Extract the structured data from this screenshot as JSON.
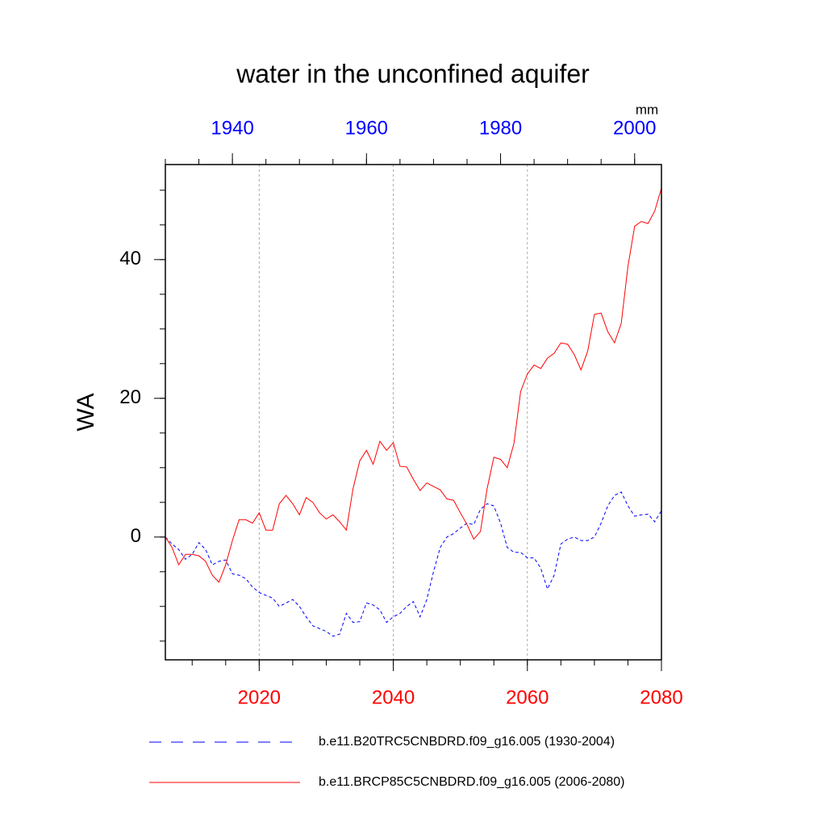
{
  "chart_data": {
    "type": "line",
    "title": "water in the unconfined aquifer",
    "y_label": "WA",
    "units": "mm",
    "xlim": [
      2006,
      2080
    ],
    "xticks": [
      2020,
      2040,
      2060,
      2080
    ],
    "xtick_color": "#ff0000",
    "x_minor_step": 5,
    "x2lim": [
      1930,
      2004
    ],
    "x2ticks": [
      1940,
      1960,
      1980,
      2000
    ],
    "x2tick_color": "#0000ff",
    "x2_minor_step": 5,
    "ylim": [
      -17.7,
      53.7
    ],
    "yticks": [
      0,
      20,
      40
    ],
    "y_minor_step": 5,
    "grid": true,
    "series": [
      {
        "name": "b.e11.B20TRC5CNBDRD.f09_g16.005 (1930-2004)",
        "color": "#0000ff",
        "dash": true,
        "axis": "x2",
        "x": [
          1930,
          1931,
          1932,
          1933,
          1934,
          1935,
          1936,
          1937,
          1938,
          1939,
          1940,
          1941,
          1942,
          1943,
          1944,
          1945,
          1946,
          1947,
          1948,
          1949,
          1950,
          1951,
          1952,
          1953,
          1954,
          1955,
          1956,
          1957,
          1958,
          1959,
          1960,
          1961,
          1962,
          1963,
          1964,
          1965,
          1966,
          1967,
          1968,
          1969,
          1970,
          1971,
          1972,
          1973,
          1974,
          1975,
          1976,
          1977,
          1978,
          1979,
          1980,
          1981,
          1982,
          1983,
          1984,
          1985,
          1986,
          1987,
          1988,
          1989,
          1990,
          1991,
          1992,
          1993,
          1994,
          1995,
          1996,
          1997,
          1998,
          1999,
          2000,
          2001,
          2002,
          2003,
          2004
        ],
        "values": [
          0,
          -1,
          -1.8,
          -3.2,
          -2.5,
          -0.8,
          -1.8,
          -4,
          -3.5,
          -3.3,
          -5.3,
          -5.5,
          -6,
          -7.2,
          -8,
          -8.4,
          -8.8,
          -10,
          -9.5,
          -9,
          -10,
          -11.5,
          -12.8,
          -13.2,
          -13.6,
          -14.3,
          -14,
          -11,
          -12.3,
          -12.2,
          -9.5,
          -9.8,
          -10.5,
          -12.3,
          -11.5,
          -11,
          -10,
          -9.3,
          -11.5,
          -9,
          -5,
          -1.5,
          0,
          0.5,
          1.3,
          2,
          1.8,
          4,
          4.8,
          4.5,
          2,
          -1.5,
          -2.2,
          -2.2,
          -3,
          -3,
          -4.5,
          -7.5,
          -5.5,
          -1,
          -0.3,
          0,
          -0.5,
          -0.5,
          0,
          2,
          4.5,
          6,
          6.5,
          4.5,
          3,
          3.2,
          3.3,
          2.2,
          3.8
        ]
      },
      {
        "name": "b.e11.BRCP85C5CNBDRD.f09_g16.005 (2006-2080)",
        "color": "#ff0000",
        "dash": false,
        "axis": "x",
        "x": [
          2006,
          2007,
          2008,
          2009,
          2010,
          2011,
          2012,
          2013,
          2014,
          2015,
          2016,
          2017,
          2018,
          2019,
          2020,
          2021,
          2022,
          2023,
          2024,
          2025,
          2026,
          2027,
          2028,
          2029,
          2030,
          2031,
          2032,
          2033,
          2034,
          2035,
          2036,
          2037,
          2038,
          2039,
          2040,
          2041,
          2042,
          2043,
          2044,
          2045,
          2046,
          2047,
          2048,
          2049,
          2050,
          2051,
          2052,
          2053,
          2054,
          2055,
          2056,
          2057,
          2058,
          2059,
          2060,
          2061,
          2062,
          2063,
          2064,
          2065,
          2066,
          2067,
          2068,
          2069,
          2070,
          2071,
          2072,
          2073,
          2074,
          2075,
          2076,
          2077,
          2078,
          2079,
          2080
        ],
        "values": [
          0,
          -1.5,
          -4,
          -2.5,
          -2.5,
          -2.7,
          -3.5,
          -5.5,
          -6.5,
          -4,
          -0.5,
          2.5,
          2.5,
          2,
          3.5,
          1,
          1,
          4.8,
          6,
          4.8,
          3.2,
          5.7,
          5,
          3.5,
          2.6,
          3.2,
          2.2,
          1,
          7,
          11,
          12.5,
          10.5,
          13.8,
          12.5,
          13.6,
          10.2,
          10.1,
          8.3,
          6.7,
          7.8,
          7.3,
          6.8,
          5.5,
          5.3,
          3.5,
          1.8,
          -0.3,
          0.8,
          7,
          11.5,
          11.2,
          10,
          13.5,
          21,
          23.5,
          24.8,
          24.3,
          25.8,
          26.5,
          28,
          27.8,
          26.3,
          24.1,
          26.8,
          32.1,
          32.3,
          29.6,
          28,
          30.8,
          39,
          44.8,
          45.5,
          45.2,
          47,
          50.3
        ]
      }
    ]
  }
}
